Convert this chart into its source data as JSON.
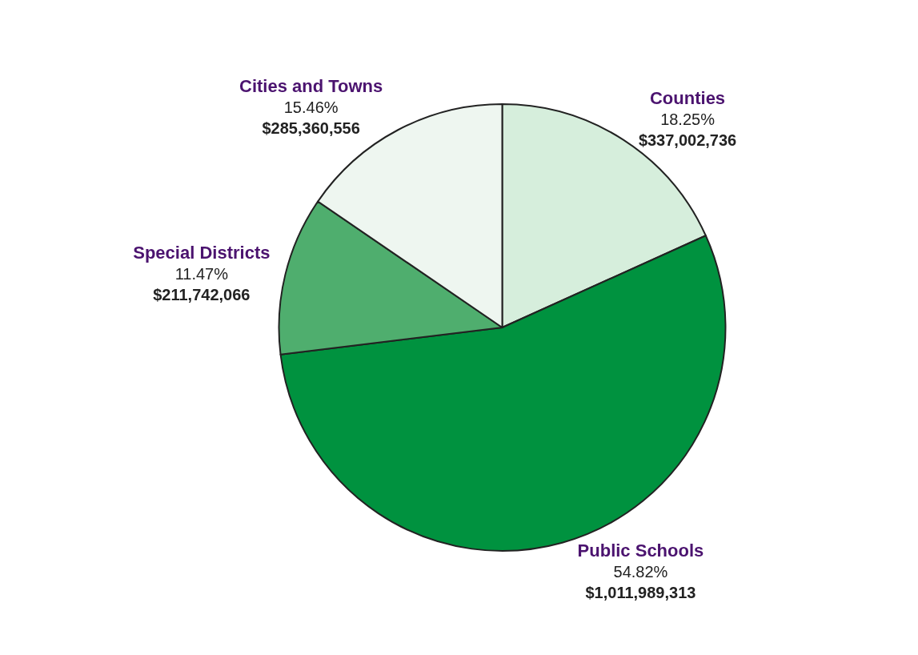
{
  "chart_data": {
    "type": "pie",
    "categories": [
      "Counties",
      "Public Schools",
      "Special Districts",
      "Cities and Towns"
    ],
    "values": [
      337002736,
      1011989313,
      211742066,
      285360556
    ],
    "value_labels": [
      "18.25%\n$337,002,736",
      "54.82%\n$1,011,989,313",
      "11.47%\n$211,742,066",
      "15.46%\n$285,360,556"
    ],
    "colors": [
      "#d6eedc",
      "#00923f",
      "#4fae6e",
      "#eef6f0"
    ],
    "legend": false
  }
}
